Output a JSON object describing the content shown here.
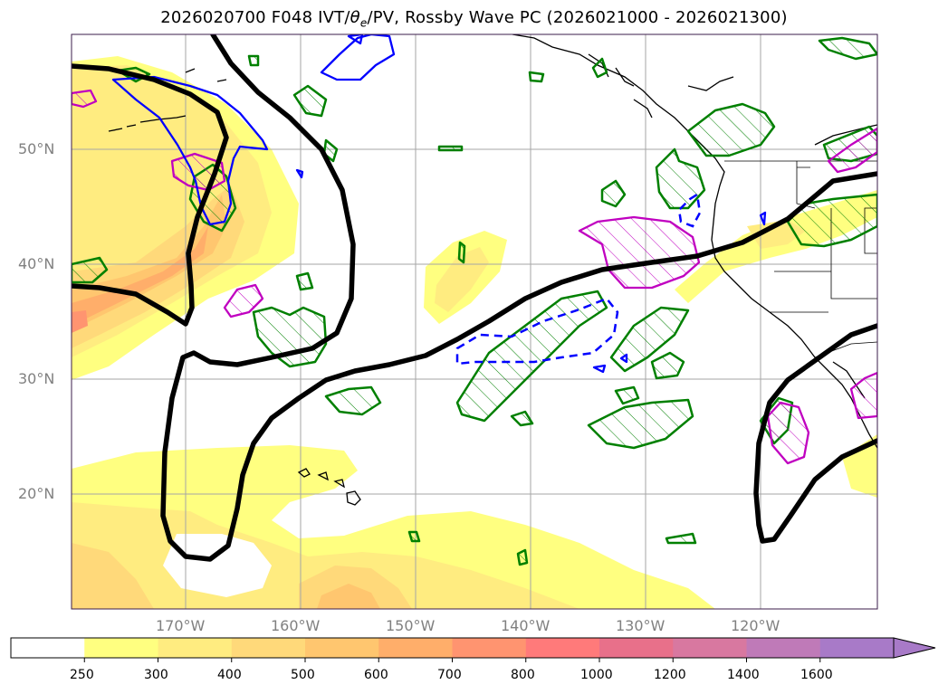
{
  "map": {
    "title_prefix": "2026020700 F048 IVT/",
    "title_theta": "θ",
    "title_theta_sub": "e",
    "title_suffix": "/PV, Rossby Wave PC (2026021000 - 2026021300)",
    "lat_labels": [
      "50°N",
      "40°N",
      "30°N",
      "20°N"
    ],
    "lon_labels": [
      "170°W",
      "160°W",
      "150°W",
      "140°W",
      "130°W",
      "120°W"
    ],
    "colorbar": {
      "ticks": [
        "250",
        "300",
        "400",
        "500",
        "600",
        "700",
        "800",
        "1000",
        "1200",
        "1400",
        "1600"
      ],
      "colors": [
        "#ffffff",
        "#ffff80",
        "#ffec80",
        "#ffd97a",
        "#ffc66f",
        "#ffae6a",
        "#ff9470",
        "#ff7a7a",
        "#e8708a",
        "#d878a0",
        "#bf7ab8",
        "#a87ac8"
      ]
    },
    "legend_colors": {
      "rossby_wave_pc": "#000000",
      "positive_pv": "#008000",
      "negative_pv_dashed": "#0000ff",
      "theta_e_anomaly": "#c000c0"
    }
  }
}
